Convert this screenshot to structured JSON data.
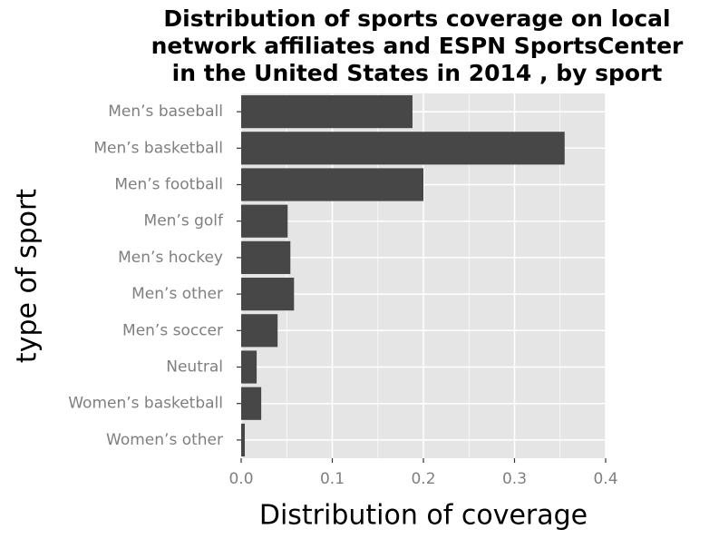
{
  "chart_data": {
    "type": "bar",
    "orientation": "horizontal",
    "title": "Distribution of sports coverage on local\nnetwork affiliates and ESPN SportsCenter\nin the United States in 2014 , by sport",
    "xlabel": "Distribution of coverage",
    "ylabel": "type of sport",
    "categories": [
      "Men’s baseball",
      "Men’s basketball",
      "Men’s football",
      "Men’s golf",
      "Men’s hockey",
      "Men’s other",
      "Men’s soccer",
      "Neutral",
      "Women’s basketball",
      "Women’s other"
    ],
    "values": [
      0.188,
      0.355,
      0.2,
      0.051,
      0.054,
      0.058,
      0.04,
      0.017,
      0.022,
      0.004
    ],
    "xlim": [
      0,
      0.4
    ],
    "xticks": [
      "0.0",
      "0.1",
      "0.2",
      "0.3",
      "0.4"
    ],
    "grid": true,
    "colors": {
      "bar": "#474747",
      "panel": "#e5e5e5",
      "grid": "#ffffff"
    }
  }
}
